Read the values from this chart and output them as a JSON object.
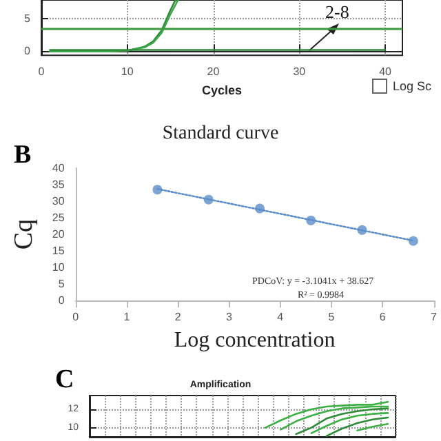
{
  "chart_data": [
    {
      "type": "line",
      "xlabel": "Cycles",
      "xlim": [
        0,
        42
      ],
      "xticks": [
        0,
        10,
        20,
        30,
        40
      ],
      "ylim": [
        -0.6,
        7.8
      ],
      "yticks": [
        0,
        5
      ],
      "grid": true,
      "marker": "none",
      "line_style": "solid",
      "series": [
        {
          "color": "#2e8b3a",
          "x": [
            1,
            8,
            10,
            12,
            13,
            14,
            15,
            15.6
          ],
          "values": [
            0,
            0,
            0.1,
            0.7,
            1.5,
            3.2,
            6.2,
            7.8
          ]
        },
        {
          "color": "#3da84a",
          "x": [
            1,
            8,
            10,
            12,
            13,
            14,
            15,
            15.9
          ],
          "values": [
            0,
            0,
            0.1,
            0.6,
            1.3,
            2.8,
            5.6,
            7.8
          ]
        },
        {
          "color": "#2e8b3a",
          "x": [
            1,
            40
          ],
          "values": [
            0.2,
            0.2
          ]
        }
      ],
      "ref_lines": [
        {
          "axis": "y",
          "value": 3.5,
          "color": "#3a9a3a"
        }
      ],
      "annotations": [
        "2-8",
        "Log Sc"
      ]
    },
    {
      "type": "scatter",
      "title": "Standard curve",
      "xlabel": "Log concentration",
      "ylabel": "Cq",
      "xlim": [
        0,
        7
      ],
      "xticks": [
        0,
        1,
        2,
        3,
        4,
        5,
        6,
        7
      ],
      "ylim": [
        0,
        40
      ],
      "yticks": [
        0,
        5,
        10,
        15,
        20,
        25,
        30,
        35,
        40
      ],
      "grid": false,
      "marker": "circle",
      "series": [
        {
          "color": "#5b8ec9",
          "x": [
            1.6,
            2.6,
            3.6,
            4.6,
            5.6,
            6.6
          ],
          "values": [
            33.5,
            30.5,
            27.8,
            24.2,
            21.3,
            18
          ]
        },
        {
          "type": "line",
          "color": "#5b8ec9",
          "marker": "none",
          "line_style": "dotted",
          "x": [
            1.6,
            6.6
          ],
          "values": [
            33.7,
            18.1
          ]
        }
      ],
      "annotations": [
        "B",
        "PDCoV:   y = -3.1041x + 38.627",
        "R² = 0.9984"
      ]
    },
    {
      "type": "line",
      "title": "Amplification",
      "categories": [
        null,
        null,
        null,
        null,
        null,
        null,
        null,
        null,
        null,
        null,
        null,
        null,
        null,
        null,
        null,
        null,
        null,
        null,
        null,
        null
      ],
      "ylim": [
        9,
        13.5
      ],
      "yticks": [
        10,
        12
      ],
      "grid": true,
      "marker": "none",
      "line_style": "solid",
      "tick_labels": "y",
      "series": [
        {
          "color": "#3cb043",
          "values": [
            null,
            null,
            null,
            null,
            null,
            null,
            null,
            null,
            null,
            null,
            null,
            10.0,
            10.8,
            11.5,
            12.0,
            12.3,
            12.4,
            12.5,
            12.5,
            12.8
          ]
        },
        {
          "color": "#3cb043",
          "values": [
            null,
            null,
            null,
            null,
            null,
            null,
            null,
            null,
            null,
            null,
            null,
            null,
            9.8,
            10.7,
            11.3,
            11.8,
            12.1,
            12.2,
            12.3,
            12.3
          ]
        },
        {
          "color": "#2e8b3a",
          "values": [
            null,
            null,
            null,
            null,
            null,
            null,
            null,
            null,
            null,
            null,
            null,
            null,
            null,
            9.3,
            10.0,
            11.0,
            11.5,
            11.8,
            12.0,
            12.1
          ]
        },
        {
          "color": "#3cb043",
          "values": [
            null,
            null,
            null,
            null,
            null,
            null,
            null,
            null,
            null,
            null,
            null,
            null,
            null,
            null,
            9.4,
            10.2,
            10.9,
            11.3,
            11.5,
            11.6
          ]
        },
        {
          "color": "#2e8b3a",
          "values": [
            null,
            null,
            null,
            null,
            null,
            null,
            null,
            null,
            null,
            null,
            null,
            null,
            null,
            null,
            null,
            9.1,
            9.9,
            10.5,
            10.9,
            11.1
          ]
        },
        {
          "color": "#3cb043",
          "values": [
            null,
            null,
            null,
            null,
            null,
            null,
            null,
            null,
            null,
            null,
            null,
            null,
            null,
            null,
            null,
            null,
            null,
            9.7,
            10.1,
            10.4
          ]
        }
      ],
      "annotations": [
        "C"
      ]
    }
  ]
}
